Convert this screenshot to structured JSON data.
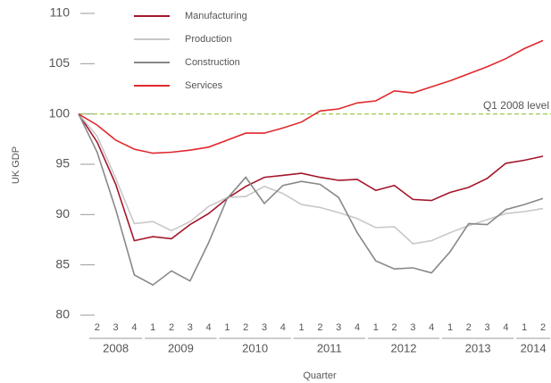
{
  "chart_data": {
    "type": "line",
    "y_label": "UK GDP",
    "x_label": "Quarter",
    "categories": [
      null,
      "2",
      "3",
      "4",
      "1",
      "2",
      "3",
      "4",
      "1",
      "2",
      "3",
      "4",
      "1",
      "2",
      "3",
      "4",
      "1",
      "2",
      "3",
      "4",
      "1",
      "2",
      "3",
      "4",
      "1",
      "2"
    ],
    "years": [
      "2008",
      "2009",
      "2010",
      "2011",
      "2012",
      "2013",
      "2014"
    ],
    "series": [
      {
        "name": "Manufacturing",
        "color": "#a3162b",
        "values": [
          100,
          97.2,
          93.0,
          87.4,
          87.8,
          87.6,
          89.0,
          90.1,
          91.6,
          92.8,
          93.7,
          93.9,
          94.1,
          93.7,
          93.4,
          93.5,
          92.4,
          92.9,
          91.5,
          91.4,
          92.2,
          92.7,
          93.6,
          95.1,
          95.4,
          95.8
        ]
      },
      {
        "name": "Production",
        "color": "#c8c8c8",
        "values": [
          100,
          97.8,
          93.6,
          89.1,
          89.3,
          88.4,
          89.3,
          90.8,
          91.7,
          91.8,
          92.8,
          92.1,
          91.0,
          90.7,
          90.2,
          89.6,
          88.7,
          88.8,
          87.1,
          87.4,
          88.2,
          88.9,
          89.5,
          90.1,
          90.3,
          90.6
        ]
      },
      {
        "name": "Construction",
        "color": "#888888",
        "values": [
          100,
          96.2,
          90.5,
          84.0,
          83.0,
          84.4,
          83.4,
          87.2,
          91.6,
          93.7,
          91.1,
          92.9,
          93.3,
          93.0,
          91.7,
          88.2,
          85.4,
          84.6,
          84.7,
          84.2,
          86.3,
          89.1,
          89.0,
          90.5,
          91.0,
          91.6
        ]
      },
      {
        "name": "Services",
        "color": "#e0282e",
        "values": [
          100,
          98.9,
          97.4,
          96.5,
          96.1,
          96.2,
          96.4,
          96.7,
          97.4,
          98.1,
          98.1,
          98.6,
          99.2,
          100.3,
          100.5,
          101.1,
          101.3,
          102.3,
          102.1,
          102.7,
          103.3,
          104.0,
          104.7,
          105.5,
          106.5,
          107.3
        ]
      }
    ],
    "reference_line": {
      "value": 100,
      "label": "Q1 2008 level",
      "color": "#8dc63f"
    },
    "ylim": [
      80,
      110
    ],
    "yticks": [
      80,
      85,
      90,
      95,
      100,
      105,
      110
    ]
  }
}
